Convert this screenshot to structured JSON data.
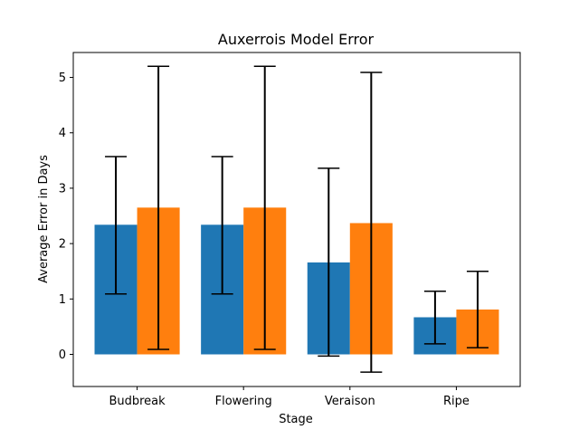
{
  "chart_data": {
    "type": "bar",
    "title": "Auxerrois Model Error",
    "xlabel": "Stage",
    "ylabel": "Average Error in Days",
    "categories": [
      "Budbreak",
      "Flowering",
      "Veraison",
      "Ripe"
    ],
    "ylim": [
      -0.58,
      5.45
    ],
    "yticks": [
      0,
      1,
      2,
      3,
      4,
      5
    ],
    "grid": false,
    "legend": "none",
    "series": [
      {
        "color": "#1f77b4",
        "values": [
          2.34,
          2.34,
          1.66,
          0.67
        ],
        "error_low": [
          1.09,
          1.09,
          -0.03,
          0.19
        ],
        "error_high": [
          3.57,
          3.57,
          3.36,
          1.14
        ]
      },
      {
        "color": "#ff7f0e",
        "values": [
          2.65,
          2.65,
          2.37,
          0.81
        ],
        "error_low": [
          0.09,
          0.09,
          -0.32,
          0.12
        ],
        "error_high": [
          5.2,
          5.2,
          5.09,
          1.5
        ]
      }
    ]
  }
}
